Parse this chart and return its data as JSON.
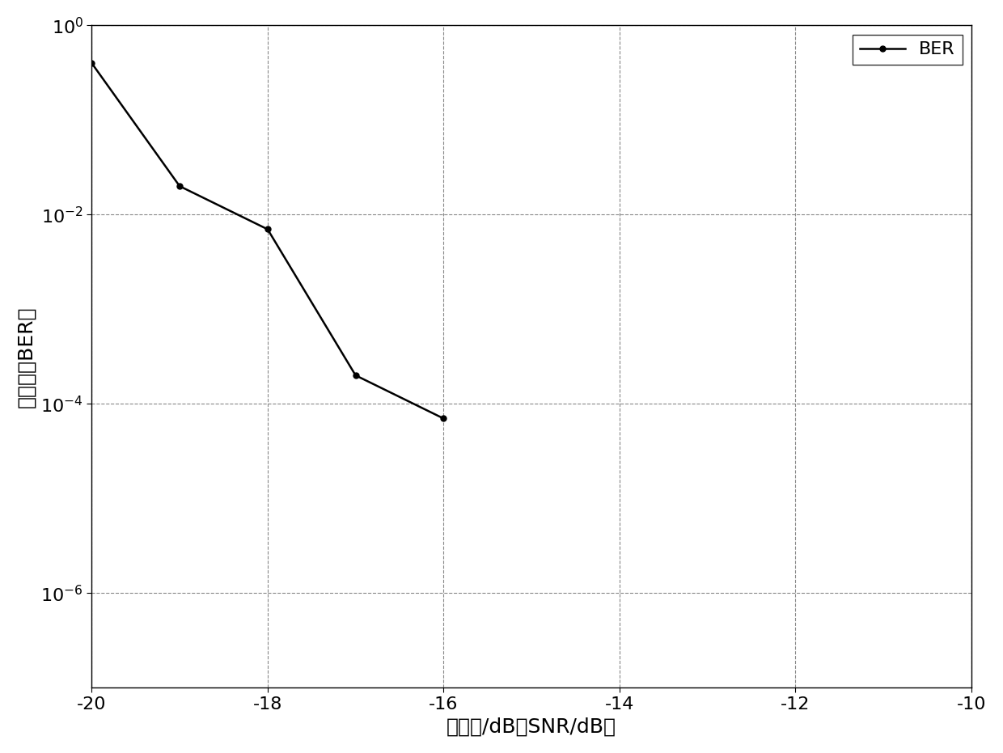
{
  "x": [
    -20,
    -19,
    -18,
    -17,
    -16
  ],
  "y": [
    0.4,
    0.02,
    0.007,
    0.0002,
    7e-05
  ],
  "xlabel": "信噪比/dB（SNR/dB）",
  "ylabel": "误码率（BER）",
  "legend_label": "BER",
  "xlim": [
    -20,
    -10
  ],
  "ylim": [
    1e-07,
    1.0
  ],
  "xticks": [
    -20,
    -18,
    -16,
    -14,
    -12,
    -10
  ],
  "yticks": [
    1e-06,
    0.0001,
    0.01,
    1.0
  ],
  "line_color": "#000000",
  "marker": "o",
  "marker_size": 5,
  "grid_color": "#888888",
  "grid_linestyle": "--",
  "background_color": "#ffffff",
  "legend_fontsize": 16,
  "axis_label_fontsize": 18,
  "tick_fontsize": 16
}
